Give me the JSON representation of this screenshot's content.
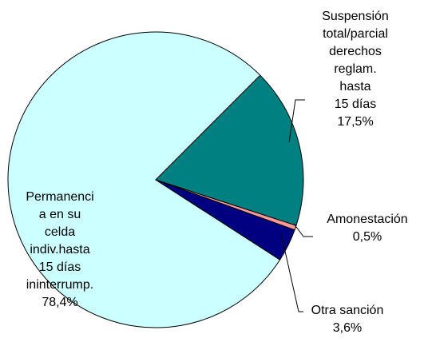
{
  "chart_data": {
    "type": "pie",
    "categories": [
      "Suspensión\ntotal/parcial\nderechos\nreglam. hasta\n15 días",
      "Amonestación",
      "Otra sanción",
      "Permanenci\na en su\ncelda\nindiv.hasta\n15 días\nininterrump."
    ],
    "values": [
      17.5,
      0.5,
      3.6,
      78.4
    ],
    "value_labels": [
      "17,5%",
      "0,5%",
      "3,6%",
      "78,4%"
    ],
    "colors": [
      "#008080",
      "#ff9999",
      "#000080",
      "#ccffff"
    ]
  }
}
